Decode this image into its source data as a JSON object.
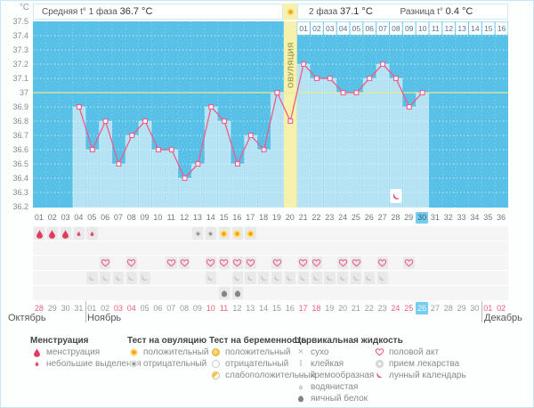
{
  "header": {
    "unit_label": "°C",
    "phase1_label": "Средняя t° 1 фаза",
    "phase1_value": "36.7 °C",
    "phase2_label": "2 фаза",
    "phase2_value": "37.1 °C",
    "diff_label": "Разница t°",
    "diff_value": "0.4 °C"
  },
  "chart_data": {
    "type": "line",
    "x_days": [
      "01",
      "02",
      "03",
      "04",
      "05",
      "06",
      "07",
      "08",
      "09",
      "10",
      "11",
      "12",
      "13",
      "14",
      "15",
      "16",
      "17",
      "18",
      "19",
      "20",
      "21",
      "22",
      "23",
      "24",
      "25",
      "26",
      "27",
      "28",
      "29",
      "30",
      "31",
      "32",
      "33",
      "34",
      "35",
      "36"
    ],
    "temps": [
      null,
      null,
      null,
      36.9,
      36.6,
      36.8,
      36.5,
      36.7,
      36.8,
      36.6,
      36.6,
      36.4,
      36.5,
      36.9,
      36.8,
      36.5,
      36.7,
      36.6,
      37.0,
      36.8,
      37.2,
      37.1,
      37.1,
      37.0,
      37.0,
      37.1,
      37.2,
      37.1,
      36.9,
      37.0,
      null,
      null,
      null,
      null,
      null,
      null
    ],
    "ylim": [
      36.2,
      37.5
    ],
    "y_ticks": [
      "37.5",
      "37.4",
      "37.3",
      "37.2",
      "37.1",
      "37",
      "36.9",
      "36.8",
      "36.7",
      "36.6",
      "36.5",
      "36.4",
      "36.3",
      "36.2"
    ],
    "coverline": 37.0,
    "ovulation_day": 20,
    "ovulation_label": "ОВУЛЯЦИЯ",
    "dpo_labels": [
      "01",
      "02",
      "03",
      "04",
      "05",
      "06",
      "07",
      "08",
      "09",
      "10",
      "11",
      "12",
      "13",
      "14",
      "15",
      "16"
    ],
    "moon_day": 28,
    "today_cycle_day": 30,
    "grid": "dotted-white"
  },
  "markers": {
    "menstruation_heavy_days": [
      1,
      2,
      3
    ],
    "menstruation_light_days": [
      4,
      5
    ],
    "ovulation_test_negative_days": [
      13,
      14
    ],
    "ovulation_test_positive_days": [
      15,
      16,
      17
    ],
    "intercourse_days": [
      6,
      8,
      11,
      12,
      14,
      15,
      16,
      17,
      19,
      21,
      22,
      24,
      25,
      27,
      29
    ],
    "cervical_creamy_days": [
      5,
      6,
      7,
      8,
      9,
      14,
      16,
      17,
      18,
      19,
      20,
      21,
      22,
      23,
      24,
      25,
      26,
      27
    ],
    "cervical_eggwhite_days": [
      15,
      16
    ]
  },
  "calendar": {
    "months": [
      {
        "name": "Октябрь",
        "start": 28,
        "end": 31,
        "red": [
          28
        ]
      },
      {
        "name": "Ноябрь",
        "start": 1,
        "end": 30,
        "red": [
          3,
          4,
          10,
          11,
          17,
          18,
          24,
          25
        ],
        "today": 26
      },
      {
        "name": "Декабрь",
        "start": 1,
        "end": 2,
        "red": [
          1,
          2
        ]
      }
    ]
  },
  "legend": {
    "columns": [
      {
        "title": "Менструация",
        "items": [
          {
            "icon": "menstruation-heavy",
            "label": "менструация"
          },
          {
            "icon": "menstruation-light",
            "label": "небольшие выделения"
          }
        ]
      },
      {
        "title": "Тест на овуляцию",
        "items": [
          {
            "icon": "ovulation-test-positive",
            "label": "положительный"
          },
          {
            "icon": "ovulation-test-negative",
            "label": "отрицательный"
          }
        ]
      },
      {
        "title": "Тест на беременность",
        "items": [
          {
            "icon": "pregnancy-test-positive",
            "label": "положительный"
          },
          {
            "icon": "pregnancy-test-negative",
            "label": "отрицательный"
          },
          {
            "icon": "pregnancy-test-weak",
            "label": "слабоположительный"
          }
        ]
      },
      {
        "title": "Цервикальная жидкость",
        "items": [
          {
            "icon": "cf-dry",
            "label": "сухо"
          },
          {
            "icon": "cf-sticky",
            "label": "клейкая"
          },
          {
            "icon": "cf-creamy",
            "label": "кремообразная"
          },
          {
            "icon": "cf-watery",
            "label": "водянистая"
          },
          {
            "icon": "cf-eggwhite",
            "label": "яичный белок"
          }
        ]
      },
      {
        "title": "",
        "items": [
          {
            "icon": "intercourse",
            "label": "половой акт"
          },
          {
            "icon": "medication",
            "label": "прием лекарства"
          },
          {
            "icon": "lunar",
            "label": "лунный календарь"
          }
        ]
      }
    ]
  },
  "colors": {
    "chart_background": "#59c1e8",
    "temperature_bar": "#b6e3f4",
    "ovulation_band": "#f6f2ae",
    "coverline": "#e3ec98",
    "curve": "#ed5c88",
    "menstruation_drop": "#e23a5e",
    "today_highlight": "#74cef2",
    "weekend_red": "#ef5e7a"
  }
}
